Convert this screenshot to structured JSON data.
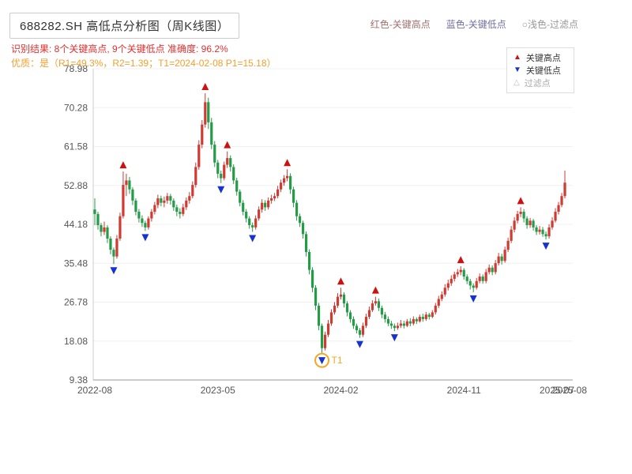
{
  "header": {
    "title": "688282.SH 高低点分析图（周K线图）",
    "legend_top": {
      "high": "红色-关键高点",
      "low": "蓝色-关键低点",
      "filter": "○浅色-过滤点"
    },
    "result_line": "识别结果: 8个关键高点, 9个关键低点  准确度: 96.2%",
    "quality_line": "优质：是（R1=49.3%，R2=1.39；T1=2024-02-08 P1=15.18）"
  },
  "legend_box": {
    "high": "关键高点",
    "low": "关键低点",
    "filter": "过滤点"
  },
  "colors": {
    "up": "#cf3a32",
    "down": "#259b48",
    "key_high": "#cc1111",
    "key_low": "#1733cc",
    "filter_pt": "#bbbbbb",
    "t1": "#f5a623",
    "grid": "#f0f0f0",
    "axis": "#999999",
    "tick_text": "#555555",
    "title_text": "#333333",
    "result_text": "#e03131",
    "quality_text": "#f0a030",
    "legend_border": "#dddddd",
    "top_legend_high": "#a07070",
    "top_legend_low": "#7070a0",
    "top_legend_filter": "#999999"
  },
  "chart_data": {
    "type": "candlestick",
    "title": "688282.SH 高低点分析图（周K线图）",
    "ylabel": "",
    "xlabel": "",
    "ylim": [
      9.38,
      78.98
    ],
    "y_ticks": [
      9.38,
      18.08,
      26.78,
      35.48,
      44.18,
      52.88,
      61.58,
      70.28,
      78.98
    ],
    "x_ticks": [
      {
        "pos": 0,
        "label": "2022-08"
      },
      {
        "pos": 39,
        "label": "2023-05"
      },
      {
        "pos": 78,
        "label": "2024-02"
      },
      {
        "pos": 117,
        "label": "2024-11"
      },
      {
        "pos": 146.5,
        "label": "2025-07"
      },
      {
        "pos": 150.5,
        "label": "2025-08"
      }
    ],
    "candles": [
      [
        47.5,
        46.5,
        44.0,
        50.0
      ],
      [
        46.5,
        44.0,
        43.0,
        47.0
      ],
      [
        44.0,
        42.5,
        41.5,
        44.5
      ],
      [
        42.5,
        43.5,
        41.8,
        44.8
      ],
      [
        43.5,
        41.0,
        40.0,
        44.0
      ],
      [
        41.0,
        38.5,
        37.5,
        41.5
      ],
      [
        38.5,
        37.0,
        35.3,
        39.0
      ],
      [
        37.0,
        41.0,
        36.5,
        41.8
      ],
      [
        41.0,
        46.0,
        40.5,
        46.8
      ],
      [
        46.0,
        53.0,
        45.5,
        56.0
      ],
      [
        53.0,
        54.0,
        50.5,
        55.5
      ],
      [
        54.0,
        52.0,
        51.0,
        54.8
      ],
      [
        52.0,
        49.5,
        48.5,
        52.5
      ],
      [
        49.5,
        47.0,
        46.2,
        50.0
      ],
      [
        47.0,
        45.5,
        44.6,
        47.6
      ],
      [
        45.5,
        44.5,
        43.6,
        46.2
      ],
      [
        44.5,
        43.5,
        42.7,
        45.0
      ],
      [
        43.5,
        45.5,
        43.0,
        46.0
      ],
      [
        45.5,
        47.0,
        44.8,
        47.6
      ],
      [
        47.0,
        48.5,
        46.4,
        49.2
      ],
      [
        48.5,
        50.0,
        47.8,
        50.8
      ],
      [
        50.0,
        49.0,
        48.2,
        50.6
      ],
      [
        49.0,
        49.5,
        48.0,
        50.4
      ],
      [
        49.5,
        50.5,
        48.8,
        51.2
      ],
      [
        50.5,
        49.5,
        48.6,
        51.0
      ],
      [
        49.5,
        48.0,
        47.2,
        50.0
      ],
      [
        48.0,
        47.0,
        46.0,
        48.6
      ],
      [
        47.0,
        46.5,
        45.5,
        47.8
      ],
      [
        46.5,
        48.0,
        46.0,
        48.8
      ],
      [
        48.0,
        49.5,
        47.4,
        50.2
      ],
      [
        49.5,
        50.5,
        48.8,
        51.4
      ],
      [
        50.5,
        53.0,
        50.0,
        53.8
      ],
      [
        53.0,
        57.0,
        52.4,
        58.0
      ],
      [
        57.0,
        62.0,
        56.4,
        63.0
      ],
      [
        62.0,
        66.5,
        61.2,
        67.5
      ],
      [
        66.5,
        71.5,
        65.8,
        73.5
      ],
      [
        71.5,
        67.0,
        65.5,
        72.5
      ],
      [
        67.0,
        62.0,
        61.0,
        68.0
      ],
      [
        62.0,
        58.0,
        57.0,
        62.8
      ],
      [
        58.0,
        55.5,
        54.5,
        58.6
      ],
      [
        55.5,
        54.5,
        53.4,
        56.2
      ],
      [
        54.5,
        57.5,
        54.0,
        58.2
      ],
      [
        57.5,
        59.0,
        56.8,
        60.5
      ],
      [
        59.0,
        57.0,
        56.0,
        59.6
      ],
      [
        57.0,
        54.0,
        53.2,
        57.6
      ],
      [
        54.0,
        51.5,
        50.6,
        54.6
      ],
      [
        51.5,
        49.0,
        48.2,
        52.0
      ],
      [
        49.0,
        47.0,
        46.2,
        49.6
      ],
      [
        47.0,
        45.5,
        44.6,
        47.6
      ],
      [
        45.5,
        44.0,
        43.2,
        46.0
      ],
      [
        44.0,
        43.5,
        42.5,
        44.6
      ],
      [
        43.5,
        45.5,
        43.0,
        46.2
      ],
      [
        45.5,
        47.5,
        45.0,
        48.2
      ],
      [
        47.5,
        49.0,
        46.8,
        49.8
      ],
      [
        49.0,
        48.0,
        47.2,
        49.6
      ],
      [
        48.0,
        49.5,
        47.5,
        50.2
      ],
      [
        49.5,
        50.0,
        48.8,
        50.8
      ],
      [
        50.0,
        50.5,
        49.4,
        51.2
      ],
      [
        50.5,
        52.0,
        50.0,
        52.8
      ],
      [
        52.0,
        53.5,
        51.4,
        54.2
      ],
      [
        53.5,
        54.5,
        52.8,
        55.2
      ],
      [
        54.5,
        55.0,
        53.8,
        56.5
      ],
      [
        55.0,
        52.0,
        51.0,
        55.6
      ],
      [
        52.0,
        49.0,
        48.0,
        52.6
      ],
      [
        49.0,
        46.0,
        45.0,
        49.6
      ],
      [
        46.0,
        44.5,
        43.6,
        46.6
      ],
      [
        44.5,
        42.0,
        41.0,
        45.0
      ],
      [
        42.0,
        38.0,
        37.0,
        42.6
      ],
      [
        38.0,
        34.0,
        33.0,
        38.6
      ],
      [
        34.0,
        30.0,
        29.0,
        34.6
      ],
      [
        30.0,
        26.0,
        25.0,
        30.6
      ],
      [
        26.0,
        21.5,
        20.5,
        26.6
      ],
      [
        21.5,
        16.5,
        15.18,
        22.0
      ],
      [
        16.5,
        19.5,
        16.0,
        20.2
      ],
      [
        19.5,
        22.0,
        19.0,
        22.8
      ],
      [
        22.0,
        24.5,
        21.5,
        25.2
      ],
      [
        24.5,
        26.0,
        24.0,
        26.8
      ],
      [
        26.0,
        28.0,
        25.5,
        28.8
      ],
      [
        28.0,
        28.5,
        27.4,
        30.0
      ],
      [
        28.5,
        26.5,
        25.6,
        29.0
      ],
      [
        26.5,
        24.5,
        23.6,
        27.0
      ],
      [
        24.5,
        23.0,
        22.2,
        25.0
      ],
      [
        23.0,
        21.5,
        20.8,
        23.6
      ],
      [
        21.5,
        20.5,
        19.8,
        22.0
      ],
      [
        20.5,
        19.5,
        18.8,
        21.0
      ],
      [
        19.5,
        21.5,
        19.0,
        22.2
      ],
      [
        21.5,
        23.5,
        21.0,
        24.2
      ],
      [
        23.5,
        25.0,
        23.0,
        25.8
      ],
      [
        25.0,
        26.5,
        24.6,
        27.2
      ],
      [
        26.5,
        27.0,
        26.0,
        28.0
      ],
      [
        27.0,
        25.5,
        24.8,
        27.6
      ],
      [
        25.5,
        24.0,
        23.2,
        26.0
      ],
      [
        24.0,
        23.0,
        22.2,
        24.6
      ],
      [
        23.0,
        22.0,
        21.4,
        23.6
      ],
      [
        22.0,
        21.5,
        20.8,
        22.6
      ],
      [
        21.5,
        21.0,
        20.3,
        22.0
      ],
      [
        21.0,
        21.5,
        20.6,
        22.2
      ],
      [
        21.5,
        22.0,
        21.0,
        22.8
      ],
      [
        22.0,
        21.5,
        20.9,
        22.6
      ],
      [
        21.5,
        22.5,
        21.2,
        23.0
      ],
      [
        22.5,
        22.0,
        21.4,
        23.2
      ],
      [
        22.0,
        23.0,
        21.6,
        23.6
      ],
      [
        23.0,
        22.5,
        21.9,
        23.4
      ],
      [
        22.5,
        23.5,
        22.2,
        24.0
      ],
      [
        23.5,
        23.0,
        22.4,
        24.2
      ],
      [
        23.0,
        24.0,
        22.6,
        24.6
      ],
      [
        24.0,
        23.5,
        22.9,
        24.4
      ],
      [
        23.5,
        24.5,
        23.2,
        25.0
      ],
      [
        24.5,
        26.0,
        24.0,
        26.6
      ],
      [
        26.0,
        27.5,
        25.5,
        28.2
      ],
      [
        27.5,
        28.5,
        27.0,
        29.2
      ],
      [
        28.5,
        30.0,
        28.0,
        30.8
      ],
      [
        30.0,
        31.0,
        29.4,
        31.8
      ],
      [
        31.0,
        32.0,
        30.4,
        32.8
      ],
      [
        32.0,
        33.0,
        31.4,
        33.6
      ],
      [
        33.0,
        33.5,
        32.4,
        34.2
      ],
      [
        33.5,
        34.0,
        32.8,
        34.8
      ],
      [
        34.0,
        32.5,
        31.8,
        34.4
      ],
      [
        32.5,
        31.5,
        30.8,
        33.0
      ],
      [
        31.5,
        30.5,
        29.6,
        32.0
      ],
      [
        30.5,
        30.0,
        29.0,
        31.0
      ],
      [
        30.0,
        31.5,
        29.6,
        32.2
      ],
      [
        31.5,
        32.5,
        31.0,
        33.2
      ],
      [
        32.5,
        31.5,
        30.9,
        33.0
      ],
      [
        31.5,
        33.5,
        31.0,
        34.2
      ],
      [
        33.5,
        34.5,
        33.0,
        35.2
      ],
      [
        34.5,
        33.5,
        32.8,
        35.0
      ],
      [
        33.5,
        35.5,
        33.0,
        36.2
      ],
      [
        35.5,
        37.0,
        35.0,
        37.8
      ],
      [
        37.0,
        36.0,
        35.2,
        37.6
      ],
      [
        36.0,
        38.5,
        35.6,
        39.2
      ],
      [
        38.5,
        40.5,
        38.0,
        41.2
      ],
      [
        40.5,
        43.0,
        40.0,
        43.8
      ],
      [
        43.0,
        45.0,
        42.4,
        45.8
      ],
      [
        45.0,
        46.5,
        44.4,
        47.2
      ],
      [
        46.5,
        47.0,
        45.8,
        48.0
      ],
      [
        47.0,
        45.5,
        44.6,
        47.6
      ],
      [
        45.5,
        44.0,
        43.2,
        46.0
      ],
      [
        44.0,
        45.0,
        43.4,
        45.6
      ],
      [
        45.0,
        43.5,
        42.8,
        45.4
      ],
      [
        43.5,
        42.5,
        41.8,
        44.0
      ],
      [
        42.5,
        43.0,
        41.9,
        43.8
      ],
      [
        43.0,
        42.0,
        41.4,
        43.6
      ],
      [
        42.0,
        41.5,
        40.8,
        42.6
      ],
      [
        41.5,
        43.5,
        41.0,
        44.2
      ],
      [
        43.5,
        45.0,
        43.0,
        45.8
      ],
      [
        45.0,
        47.0,
        44.6,
        47.8
      ],
      [
        47.0,
        48.5,
        46.4,
        49.2
      ],
      [
        48.5,
        50.5,
        48.0,
        51.2
      ],
      [
        50.5,
        53.5,
        50.0,
        56.2
      ]
    ],
    "key_highs": [
      9,
      35,
      42,
      61,
      78,
      89,
      116,
      135
    ],
    "key_lows": [
      6,
      16,
      40,
      50,
      72,
      84,
      95,
      120,
      143
    ],
    "t1": {
      "index": 72,
      "label": "T1",
      "price": 15.18,
      "date": "2024-02-08"
    }
  }
}
